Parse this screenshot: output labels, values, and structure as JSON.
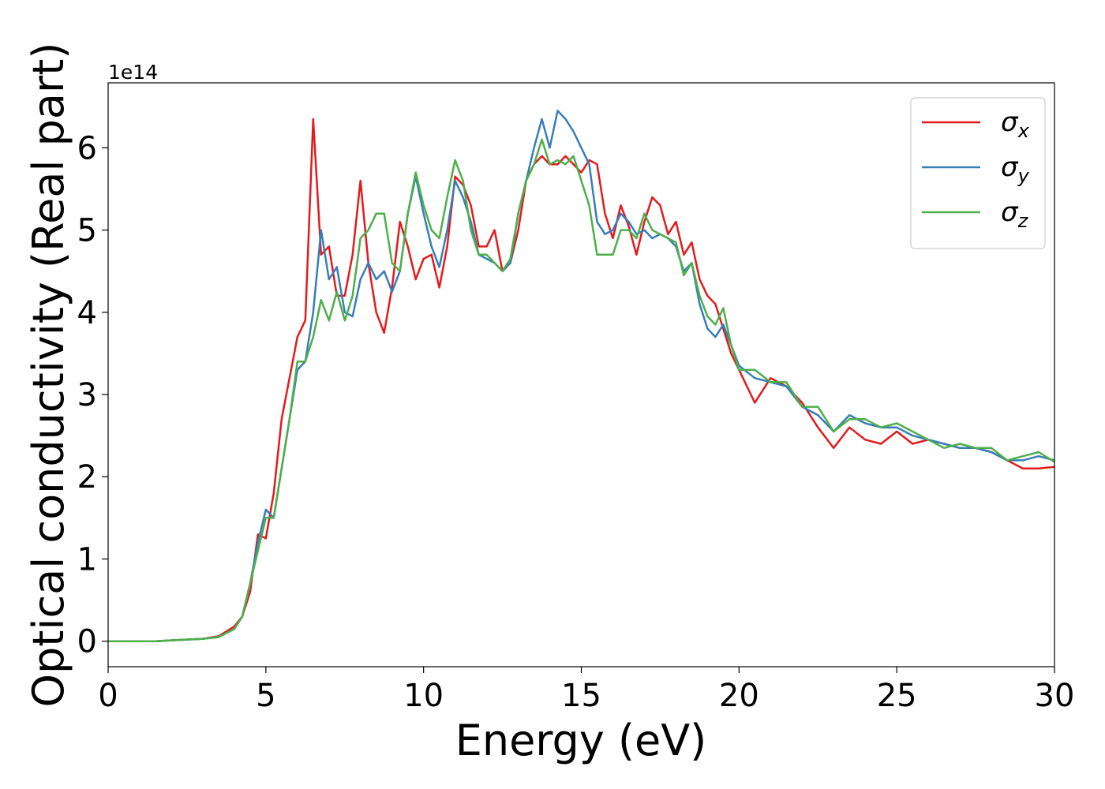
{
  "chart_data": {
    "type": "line",
    "xlabel": "Energy (eV)",
    "ylabel": "Optical conductivity (Real part)",
    "y_offset": "1e14",
    "x": [
      0,
      0.5,
      1,
      1.5,
      2,
      2.5,
      3,
      3.5,
      4,
      4.25,
      4.5,
      4.75,
      5,
      5.25,
      5.5,
      5.75,
      6,
      6.25,
      6.5,
      6.75,
      7,
      7.25,
      7.5,
      7.75,
      8,
      8.25,
      8.5,
      8.75,
      9,
      9.25,
      9.5,
      9.75,
      10,
      10.25,
      10.5,
      10.75,
      11,
      11.25,
      11.5,
      11.75,
      12,
      12.25,
      12.5,
      12.75,
      13,
      13.25,
      13.5,
      13.75,
      14,
      14.25,
      14.5,
      14.75,
      15,
      15.25,
      15.5,
      15.75,
      16,
      16.25,
      16.5,
      16.75,
      17,
      17.25,
      17.5,
      17.75,
      18,
      18.25,
      18.5,
      18.75,
      19,
      19.25,
      19.5,
      19.75,
      20,
      20.5,
      21,
      21.5,
      22,
      22.5,
      23,
      23.5,
      24,
      24.5,
      25,
      25.5,
      26,
      26.5,
      27,
      27.5,
      28,
      28.5,
      29,
      29.5,
      30
    ],
    "series": [
      {
        "name": "σx",
        "color": "#e41a1c",
        "values": [
          0,
          0,
          0,
          0,
          0.01,
          0.02,
          0.03,
          0.06,
          0.18,
          0.3,
          0.6,
          1.3,
          1.25,
          1.8,
          2.7,
          3.2,
          3.7,
          3.9,
          6.35,
          4.7,
          4.8,
          4.2,
          4.2,
          4.7,
          5.6,
          4.6,
          4.0,
          3.75,
          4.3,
          5.1,
          4.8,
          4.4,
          4.65,
          4.7,
          4.3,
          4.8,
          5.65,
          5.55,
          5.3,
          4.8,
          4.8,
          5.0,
          4.5,
          4.6,
          5.0,
          5.6,
          5.8,
          5.9,
          5.8,
          5.8,
          5.9,
          5.8,
          5.7,
          5.85,
          5.8,
          5.2,
          4.9,
          5.3,
          5.05,
          4.7,
          5.1,
          5.4,
          5.3,
          4.95,
          5.1,
          4.7,
          4.85,
          4.4,
          4.2,
          4.1,
          3.8,
          3.5,
          3.3,
          2.9,
          3.2,
          3.1,
          2.9,
          2.6,
          2.35,
          2.6,
          2.45,
          2.4,
          2.55,
          2.4,
          2.45,
          2.4,
          2.35,
          2.35,
          2.3,
          2.2,
          2.1,
          2.1,
          2.12
        ]
      },
      {
        "name": "σy",
        "color": "#377eb8",
        "values": [
          0,
          0,
          0,
          0,
          0.01,
          0.02,
          0.03,
          0.05,
          0.15,
          0.3,
          0.7,
          1.2,
          1.6,
          1.5,
          2.1,
          2.7,
          3.3,
          3.4,
          4.0,
          5.0,
          4.4,
          4.55,
          4.0,
          3.95,
          4.4,
          4.6,
          4.4,
          4.5,
          4.25,
          4.5,
          5.2,
          5.65,
          5.2,
          4.8,
          4.55,
          5.0,
          5.6,
          5.4,
          5.1,
          4.7,
          4.65,
          4.6,
          4.5,
          4.6,
          5.2,
          5.6,
          6.0,
          6.35,
          6.0,
          6.45,
          6.35,
          6.2,
          6.0,
          5.8,
          5.1,
          4.95,
          5.0,
          5.2,
          5.1,
          4.95,
          5.0,
          4.9,
          4.95,
          4.9,
          4.8,
          4.5,
          4.6,
          4.1,
          3.8,
          3.7,
          3.85,
          3.6,
          3.35,
          3.2,
          3.15,
          3.1,
          2.85,
          2.75,
          2.55,
          2.75,
          2.65,
          2.6,
          2.6,
          2.5,
          2.45,
          2.4,
          2.35,
          2.35,
          2.3,
          2.2,
          2.2,
          2.25,
          2.2
        ]
      },
      {
        "name": "σz",
        "color": "#4daf4a",
        "values": [
          0,
          0,
          0,
          0,
          0.01,
          0.02,
          0.03,
          0.05,
          0.15,
          0.3,
          0.7,
          1.1,
          1.5,
          1.5,
          2.1,
          2.7,
          3.4,
          3.4,
          3.7,
          4.15,
          3.9,
          4.25,
          3.9,
          4.2,
          4.9,
          5.0,
          5.2,
          5.2,
          4.6,
          4.5,
          5.2,
          5.7,
          5.3,
          5.0,
          4.9,
          5.4,
          5.85,
          5.6,
          5.0,
          4.7,
          4.7,
          4.6,
          4.5,
          4.65,
          5.2,
          5.6,
          5.8,
          6.1,
          5.8,
          5.85,
          5.8,
          5.9,
          5.6,
          5.3,
          4.7,
          4.7,
          4.7,
          5.0,
          5.0,
          4.9,
          5.2,
          5.0,
          4.95,
          4.9,
          4.85,
          4.45,
          4.6,
          4.2,
          3.95,
          3.85,
          4.05,
          3.6,
          3.3,
          3.3,
          3.15,
          3.15,
          2.85,
          2.85,
          2.55,
          2.7,
          2.7,
          2.6,
          2.65,
          2.55,
          2.45,
          2.35,
          2.4,
          2.35,
          2.35,
          2.2,
          2.25,
          2.3,
          2.18
        ]
      }
    ],
    "xlim": [
      0,
      30
    ],
    "xticks": [
      0,
      5,
      10,
      15,
      20,
      25,
      30
    ],
    "ylim": [
      -0.31,
      6.79
    ],
    "yticks": [
      0,
      1,
      2,
      3,
      4,
      5,
      6
    ],
    "legend": "upper right"
  }
}
